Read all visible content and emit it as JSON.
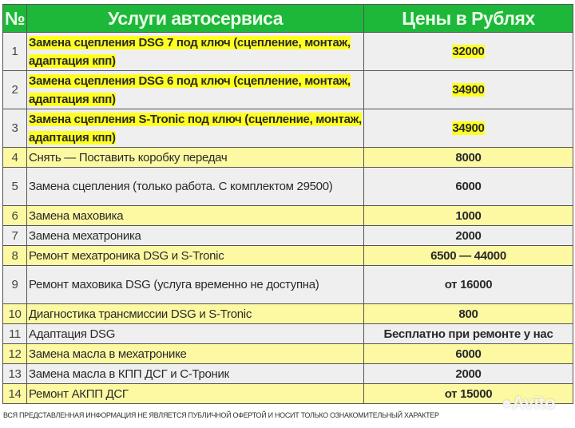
{
  "header": {
    "num": "№",
    "service": "Услуги автосервиса",
    "price": "Цены в Рублях"
  },
  "rows": [
    {
      "num": "1",
      "service": "Замена сцепления DSG 7 под ключ (сцепление, монтаж, адаптация кпп)",
      "price": "32000"
    },
    {
      "num": "2",
      "service": "Замена сцепления DSG 6 под ключ (сцепление, монтаж, адаптация кпп)",
      "price": "34900"
    },
    {
      "num": "3",
      "service": "Замена сцепления S-Tronic под ключ (сцепление, монтаж, адаптация кпп)",
      "price": "34900"
    },
    {
      "num": "4",
      "service": "Снять — Поставить коробку передач",
      "price": "8000"
    },
    {
      "num": "5",
      "service": "Замена сцепления (только работа. С комплектом 29500)",
      "price": "6000"
    },
    {
      "num": "6",
      "service": "Замена маховика",
      "price": "1000"
    },
    {
      "num": "7",
      "service": "Замена мехатроника",
      "price": "2000"
    },
    {
      "num": "8",
      "service": "Ремонт мехатроника DSG и S-Tronic",
      "price": "6500 — 44000"
    },
    {
      "num": "9",
      "service": "Ремонт маховика DSG (услуга временно не доступна)",
      "price": "от 16000"
    },
    {
      "num": "10",
      "service": "Диагностика трансмиссии DSG и S-Tronic",
      "price": "800"
    },
    {
      "num": "11",
      "service": "Адаптация DSG",
      "price": "Бесплатно при ремонте у нас"
    },
    {
      "num": "12",
      "service": "Замена масла в мехатронике",
      "price": "6000"
    },
    {
      "num": "13",
      "service": "Замена масла в КПП ДСГ и С-Троник",
      "price": "2000"
    },
    {
      "num": "14",
      "service": "Ремонт АКПП ДСГ",
      "price": "от 15000"
    }
  ],
  "footer": "ВСЯ ПРЕДСТАВЛЕННАЯ ИНФОРМАЦИЯ НЕ ЯВЛЯЕТСЯ ПУБЛИЧНОЙ ОФЕРТОЙ И НОСИТ ТОЛЬКО ОЗНАКОМИТЕЛЬНЫЙ ХАРАКТЕР",
  "watermark": "Avito",
  "colors": {
    "header": "#1db83a",
    "highlight": "#ffff22",
    "row_yellow": "#fdf9a2",
    "row_gray": "#efefef"
  }
}
